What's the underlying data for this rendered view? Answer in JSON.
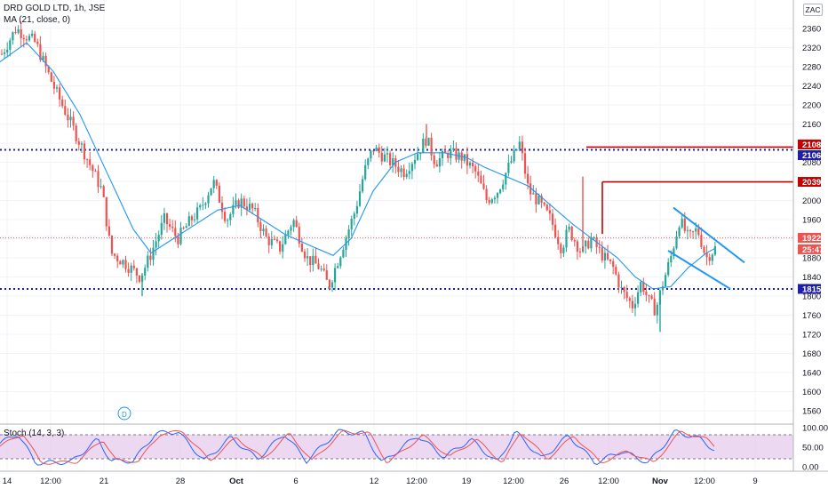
{
  "header": {
    "symbol_line": "DRD GOLD LTD, 1h, JSE",
    "ma_line": "MA (21, close, 0)",
    "currency_badge": "ZAC"
  },
  "stoch_header": {
    "title": "Stoch (14, 3, 3)"
  },
  "colors": {
    "up": "#26a69a",
    "down": "#ef5350",
    "ma": "#2196f3",
    "level_blue": "#1e1ea8",
    "level_red": "#c40000",
    "stoch_k": "#2962ff",
    "stoch_d": "#ef5350",
    "stoch_band": "#e1bee7"
  },
  "price_axis": {
    "ticks": [
      "2360",
      "2320",
      "2280",
      "2240",
      "2200",
      "2160",
      "2120",
      "2080",
      "2040",
      "2000",
      "1960",
      "1920",
      "1880",
      "1840",
      "1800",
      "1760",
      "1720",
      "1680",
      "1640",
      "1600",
      "1560"
    ]
  },
  "time_axis": {
    "ticks": [
      "14",
      "12:00",
      "21",
      "28",
      "Oct",
      "6",
      "12",
      "12:00",
      "19",
      "12:00",
      "26",
      "12:00",
      "Nov",
      "12:00",
      "9"
    ]
  },
  "stoch_axis": {
    "ticks": [
      "100.00",
      "50.00",
      "0.00"
    ]
  },
  "price_labels": {
    "level_2108": "2108",
    "level_2106": "2106",
    "level_2039": "2039",
    "last_price": "1922",
    "countdown": "25:47",
    "level_1815": "1815"
  },
  "marker": {
    "label": "D"
  },
  "chart_data": {
    "type": "candlestick",
    "title": "DRD GOLD LTD, 1h, JSE",
    "ylim": [
      1530,
      2390
    ],
    "y_scale": "linear",
    "grid": true,
    "support_resistance": [
      2106,
      1815
    ],
    "red_levels": [
      2108,
      2039
    ],
    "last_price": 1922,
    "path_points": [
      [
        0,
        2300
      ],
      [
        18,
        2360
      ],
      [
        40,
        2330
      ],
      [
        60,
        2240
      ],
      [
        80,
        2160
      ],
      [
        100,
        2080
      ],
      [
        115,
        2020
      ],
      [
        125,
        1890
      ],
      [
        140,
        1870
      ],
      [
        158,
        1840
      ],
      [
        168,
        1880
      ],
      [
        185,
        1960
      ],
      [
        200,
        1920
      ],
      [
        215,
        1960
      ],
      [
        225,
        1980
      ],
      [
        240,
        2040
      ],
      [
        255,
        1960
      ],
      [
        270,
        2000
      ],
      [
        285,
        1980
      ],
      [
        300,
        1920
      ],
      [
        315,
        1900
      ],
      [
        330,
        1960
      ],
      [
        345,
        1880
      ],
      [
        360,
        1860
      ],
      [
        370,
        1820
      ],
      [
        385,
        1900
      ],
      [
        400,
        1980
      ],
      [
        410,
        2060
      ],
      [
        420,
        2110
      ],
      [
        440,
        2080
      ],
      [
        455,
        2060
      ],
      [
        470,
        2100
      ],
      [
        480,
        2130
      ],
      [
        490,
        2080
      ],
      [
        505,
        2100
      ],
      [
        520,
        2090
      ],
      [
        535,
        2060
      ],
      [
        548,
        2000
      ],
      [
        560,
        2020
      ],
      [
        570,
        2060
      ],
      [
        585,
        2120
      ],
      [
        595,
        2020
      ],
      [
        605,
        2000
      ],
      [
        620,
        1960
      ],
      [
        632,
        1900
      ],
      [
        640,
        1940
      ],
      [
        655,
        1890
      ],
      [
        665,
        1920
      ],
      [
        680,
        1880
      ],
      [
        690,
        1860
      ],
      [
        700,
        1810
      ],
      [
        712,
        1780
      ],
      [
        722,
        1830
      ],
      [
        730,
        1790
      ],
      [
        738,
        1770
      ],
      [
        745,
        1820
      ],
      [
        755,
        1880
      ],
      [
        765,
        1960
      ],
      [
        775,
        1920
      ],
      [
        785,
        1940
      ],
      [
        795,
        1880
      ],
      [
        805,
        1900
      ]
    ],
    "ma_points": [
      [
        0,
        2290
      ],
      [
        30,
        2330
      ],
      [
        60,
        2270
      ],
      [
        90,
        2180
      ],
      [
        120,
        2060
      ],
      [
        150,
        1940
      ],
      [
        170,
        1890
      ],
      [
        195,
        1920
      ],
      [
        220,
        1950
      ],
      [
        245,
        1980
      ],
      [
        270,
        1990
      ],
      [
        295,
        1960
      ],
      [
        320,
        1930
      ],
      [
        350,
        1905
      ],
      [
        375,
        1885
      ],
      [
        395,
        1920
      ],
      [
        420,
        2020
      ],
      [
        445,
        2080
      ],
      [
        470,
        2100
      ],
      [
        500,
        2100
      ],
      [
        525,
        2090
      ],
      [
        545,
        2070
      ],
      [
        570,
        2050
      ],
      [
        595,
        2030
      ],
      [
        620,
        1990
      ],
      [
        645,
        1950
      ],
      [
        670,
        1915
      ],
      [
        695,
        1880
      ],
      [
        715,
        1840
      ],
      [
        735,
        1815
      ],
      [
        755,
        1820
      ],
      [
        775,
        1860
      ],
      [
        795,
        1890
      ],
      [
        805,
        1900
      ]
    ],
    "channel": {
      "upper": [
        [
          758,
          1985
        ],
        [
          838,
          1870
        ]
      ],
      "lower": [
        [
          752,
          1895
        ],
        [
          822,
          1815
        ]
      ]
    },
    "stochastic": {
      "k_period": 14,
      "k_smooth": 3,
      "d_smooth": 3,
      "ylim": [
        0,
        100
      ],
      "bands": [
        20,
        80
      ],
      "points": [
        [
          0,
          60
        ],
        [
          20,
          85
        ],
        [
          40,
          10
        ],
        [
          80,
          12
        ],
        [
          110,
          70
        ],
        [
          125,
          15
        ],
        [
          150,
          15
        ],
        [
          175,
          85
        ],
        [
          200,
          90
        ],
        [
          230,
          15
        ],
        [
          260,
          75
        ],
        [
          290,
          20
        ],
        [
          320,
          85
        ],
        [
          345,
          15
        ],
        [
          380,
          90
        ],
        [
          410,
          85
        ],
        [
          430,
          10
        ],
        [
          470,
          80
        ],
        [
          500,
          25
        ],
        [
          530,
          70
        ],
        [
          560,
          10
        ],
        [
          580,
          90
        ],
        [
          610,
          20
        ],
        [
          640,
          80
        ],
        [
          670,
          10
        ],
        [
          700,
          40
        ],
        [
          730,
          10
        ],
        [
          760,
          90
        ],
        [
          790,
          70
        ],
        [
          805,
          40
        ]
      ]
    }
  }
}
